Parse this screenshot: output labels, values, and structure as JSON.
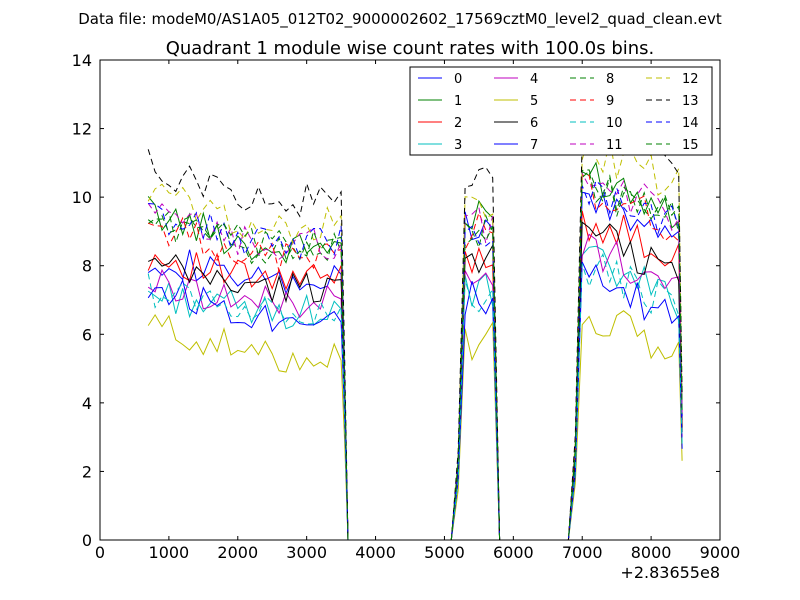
{
  "chart_data": {
    "type": "line",
    "suptitle": "Data file: modeM0/AS1A05_012T02_9000002602_17569cztM0_level2_quad_clean.evt",
    "title": "Quadrant 1 module wise count rates with 100.0s bins.",
    "xlabel": "",
    "ylabel": "",
    "x_offset_label": "+2.83655e8",
    "xlim": [
      0,
      9000
    ],
    "ylim": [
      0,
      14
    ],
    "xticks": [
      0,
      1000,
      2000,
      3000,
      4000,
      5000,
      6000,
      7000,
      8000,
      9000
    ],
    "yticks": [
      0,
      2,
      4,
      6,
      8,
      10,
      12,
      14
    ],
    "xtick_labels": [
      "0",
      "1000",
      "2000",
      "3000",
      "4000",
      "5000",
      "6000",
      "7000",
      "8000",
      "9000"
    ],
    "ytick_labels": [
      "0",
      "2",
      "4",
      "6",
      "8",
      "10",
      "12",
      "14"
    ],
    "grid": false,
    "legend_position": "top-right",
    "segments": [
      {
        "x_start": 700,
        "x_end": 3500,
        "step": 100
      },
      {
        "x_start": 5300,
        "x_end": 5700,
        "step": 100
      },
      {
        "x_start": 7000,
        "x_end": 8400,
        "step": 100
      }
    ],
    "zero_x": [
      3600,
      3700,
      3800,
      3900,
      4000,
      4100,
      4200,
      4300,
      4400,
      4500,
      4600,
      4700,
      4800,
      4900,
      5000,
      5100,
      5800,
      5900,
      6000,
      6100,
      6200,
      6300,
      6400,
      6500,
      6600,
      6700,
      6800
    ],
    "ramp_x": [
      5200,
      6900
    ],
    "ramp_fraction": 0.25,
    "series": [
      {
        "name": "0",
        "color": "#0000ff",
        "dash": "solid",
        "levels": [
          8.3,
          7.4,
          9.0,
          10.0
        ]
      },
      {
        "name": "1",
        "color": "#008000",
        "dash": "solid",
        "levels": [
          9.6,
          8.4,
          9.3,
          10.8
        ]
      },
      {
        "name": "2",
        "color": "#ff0000",
        "dash": "solid",
        "levels": [
          8.3,
          7.5,
          8.3,
          9.4
        ]
      },
      {
        "name": "3",
        "color": "#00bfbf",
        "dash": "solid",
        "levels": [
          7.2,
          6.6,
          7.2,
          8.2
        ]
      },
      {
        "name": "4",
        "color": "#bf00bf",
        "dash": "solid",
        "levels": [
          7.5,
          6.9,
          7.5,
          8.6
        ]
      },
      {
        "name": "5",
        "color": "#bfbf00",
        "dash": "solid",
        "levels": [
          6.3,
          5.3,
          5.8,
          6.6
        ]
      },
      {
        "name": "6",
        "color": "#000000",
        "dash": "solid",
        "levels": [
          8.0,
          7.3,
          8.4,
          9.0
        ]
      },
      {
        "name": "7",
        "color": "#0000ff",
        "dash": "solid",
        "levels": [
          7.4,
          6.5,
          7.0,
          7.6
        ]
      },
      {
        "name": "8",
        "color": "#008000",
        "dash": "dashed",
        "levels": [
          9.4,
          8.4,
          9.0,
          10.4
        ]
      },
      {
        "name": "9",
        "color": "#ff0000",
        "dash": "dashed",
        "levels": [
          9.2,
          8.2,
          9.0,
          10.3
        ]
      },
      {
        "name": "10",
        "color": "#00bfbf",
        "dash": "dashed",
        "levels": [
          7.3,
          6.7,
          7.0,
          8.0
        ]
      },
      {
        "name": "11",
        "color": "#bf00bf",
        "dash": "dashed",
        "levels": [
          9.5,
          8.5,
          9.2,
          10.6
        ]
      },
      {
        "name": "12",
        "color": "#bfbf00",
        "dash": "dashed",
        "levels": [
          10.2,
          9.0,
          9.6,
          11.5
        ]
      },
      {
        "name": "13",
        "color": "#000000",
        "dash": "dashed",
        "levels": [
          10.9,
          9.8,
          10.4,
          12.2
        ]
      },
      {
        "name": "14",
        "color": "#0000ff",
        "dash": "dashed",
        "levels": [
          9.5,
          8.6,
          9.1,
          10.3
        ]
      },
      {
        "name": "15",
        "color": "#008000",
        "dash": "dashed",
        "levels": [
          9.4,
          8.5,
          9.1,
          10.5
        ]
      }
    ]
  }
}
